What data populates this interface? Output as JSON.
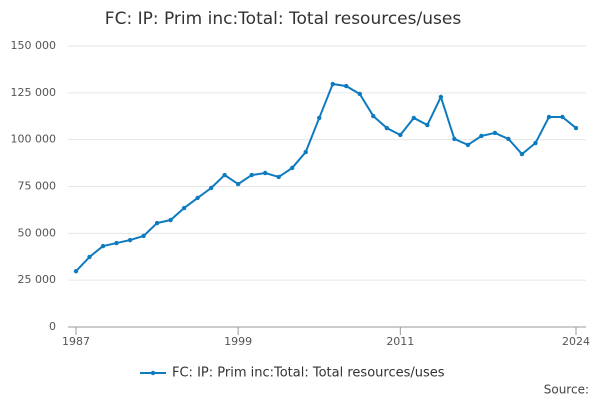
{
  "chart_data": {
    "type": "line",
    "title": "FC: IP: Prim inc:Total: Total resources/uses",
    "x": [
      1987,
      1988,
      1989,
      1990,
      1991,
      1992,
      1993,
      1994,
      1995,
      1996,
      1997,
      1998,
      1999,
      2000,
      2001,
      2002,
      2003,
      2004,
      2005,
      2006,
      2007,
      2008,
      2009,
      2010,
      2011,
      2012,
      2013,
      2014,
      2015,
      2016,
      2017,
      2018,
      2019,
      2020,
      2021,
      2022,
      2023,
      2024
    ],
    "series": [
      {
        "name": "FC: IP: Prim inc:Total: Total resources/uses",
        "color": "#0f7bbf",
        "values": [
          29800,
          37400,
          43200,
          44800,
          46400,
          48600,
          55500,
          57100,
          63500,
          68900,
          74200,
          81100,
          76300,
          81100,
          82200,
          80100,
          84900,
          93400,
          111600,
          129700,
          128600,
          124400,
          112600,
          106200,
          102500,
          111600,
          107800,
          122800,
          100400,
          97200,
          102000,
          103600,
          100400,
          92300,
          98200,
          112100,
          112100,
          106200
        ]
      }
    ],
    "xlim": [
      1987,
      2024
    ],
    "xticks": [
      1987,
      1999,
      2011,
      2024
    ],
    "ylim": [
      0,
      150000
    ],
    "yticks": [
      0,
      {
        "value": 25000,
        "label": "25 000"
      },
      {
        "value": 50000,
        "label": "50 000"
      },
      {
        "value": 75000,
        "label": "75 000"
      },
      {
        "value": 100000,
        "label": "100 000"
      },
      {
        "value": 125000,
        "label": "125 000"
      },
      {
        "value": 150000,
        "label": "150 000"
      }
    ],
    "grid": true,
    "source": "Source:"
  }
}
